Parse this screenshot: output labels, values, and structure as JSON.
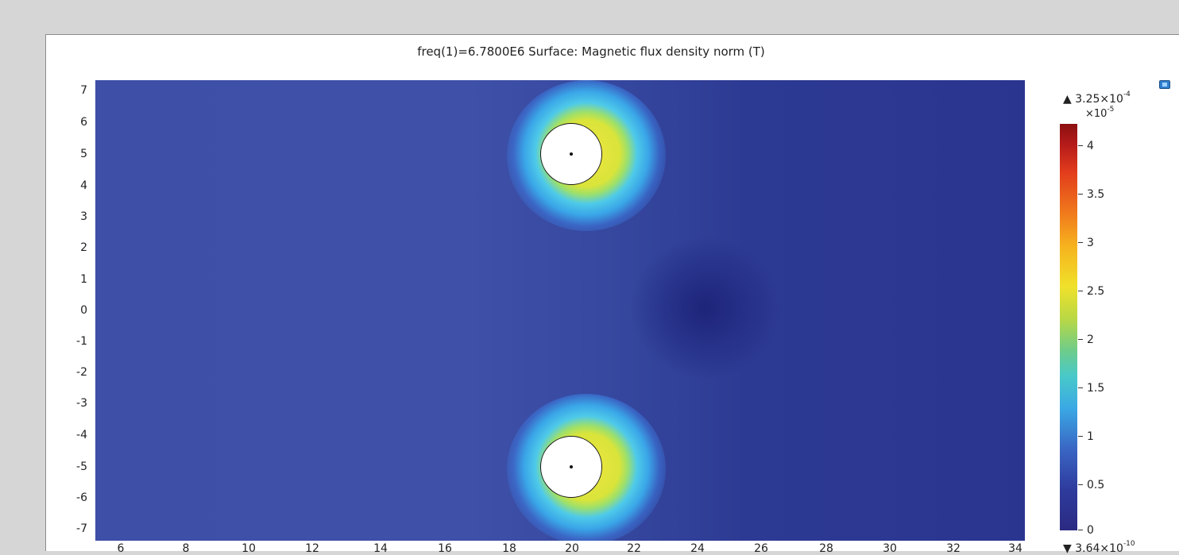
{
  "window": {
    "title": "freq(1)=6.7800E6   Surface: Magnetic flux density norm (T)"
  },
  "toolbar": {
    "export_icon": "image-export-icon"
  },
  "plot": {
    "y_ticks": [
      "7",
      "6",
      "5",
      "4",
      "3",
      "2",
      "1",
      "0",
      "-1",
      "-2",
      "-3",
      "-4",
      "-5",
      "-6",
      "-7"
    ],
    "x_ticks": [
      "6",
      "8",
      "10",
      "12",
      "14",
      "16",
      "18",
      "20",
      "22",
      "24",
      "26",
      "28",
      "30",
      "32",
      "34"
    ],
    "conductors": [
      "conductor-top",
      "conductor-bottom"
    ]
  },
  "colorbar": {
    "max_prefix": "▲ 3.25×10",
    "max_exp": "-4",
    "scale_prefix": "×10",
    "scale_exp": "-5",
    "min_prefix": "▼ 3.64×10",
    "min_exp": "-10",
    "ticks": [
      "4",
      "3.5",
      "3",
      "2.5",
      "2",
      "1.5",
      "1",
      "0.5",
      "0"
    ],
    "colors": [
      "#2b2a82",
      "#3a66c4",
      "#3aa8e4",
      "#6ccc8c",
      "#f0e12a",
      "#f07a1c",
      "#e23d1c",
      "#8b1010"
    ]
  }
}
